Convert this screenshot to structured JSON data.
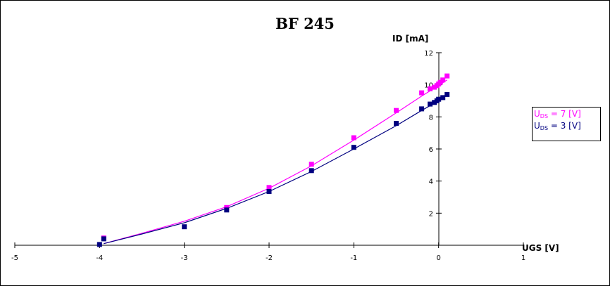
{
  "chart_data": {
    "type": "scatter",
    "title": "BF 245",
    "xlabel": "UGS [V]",
    "ylabel": "ID [mA]",
    "xlim": [
      -5,
      1
    ],
    "ylim": [
      0,
      12
    ],
    "x_ticks": [
      "-5",
      "-4",
      "-3",
      "-2",
      "-1",
      "0",
      "1"
    ],
    "y_ticks": [
      "2",
      "4",
      "6",
      "8",
      "10",
      "12"
    ],
    "grid": false,
    "legend_position": "right",
    "series": [
      {
        "id": "uds7",
        "name_main": "U",
        "name_sub": "DS",
        "name_rest": " = 7 [V]",
        "color": "#ff00ff",
        "points": [
          {
            "x": -3.95,
            "y": 0.45
          },
          {
            "x": -2.5,
            "y": 2.35
          },
          {
            "x": -2.0,
            "y": 3.6
          },
          {
            "x": -1.5,
            "y": 5.05
          },
          {
            "x": -1.0,
            "y": 6.7
          },
          {
            "x": -0.5,
            "y": 8.4
          },
          {
            "x": -0.2,
            "y": 9.5
          },
          {
            "x": -0.1,
            "y": 9.75
          },
          {
            "x": -0.05,
            "y": 9.85
          },
          {
            "x": -0.02,
            "y": 9.95
          },
          {
            "x": 0.0,
            "y": 10.05
          },
          {
            "x": 0.02,
            "y": 10.15
          },
          {
            "x": 0.05,
            "y": 10.3
          },
          {
            "x": 0.1,
            "y": 10.55
          }
        ],
        "fit": [
          {
            "x": -3.95,
            "y": 0.1
          },
          {
            "x": -3.5,
            "y": 0.75
          },
          {
            "x": -3.0,
            "y": 1.5
          },
          {
            "x": -2.5,
            "y": 2.4
          },
          {
            "x": -2.0,
            "y": 3.55
          },
          {
            "x": -1.5,
            "y": 4.95
          },
          {
            "x": -1.0,
            "y": 6.55
          },
          {
            "x": -0.5,
            "y": 8.25
          },
          {
            "x": -0.2,
            "y": 9.3
          },
          {
            "x": 0.0,
            "y": 9.95
          },
          {
            "x": 0.1,
            "y": 10.3
          }
        ]
      },
      {
        "id": "uds3",
        "name_main": "U",
        "name_sub": "DS",
        "name_rest": " = 3 [V]",
        "color": "#000080",
        "points": [
          {
            "x": -4.0,
            "y": 0.05
          },
          {
            "x": -3.95,
            "y": 0.4
          },
          {
            "x": -3.0,
            "y": 1.15
          },
          {
            "x": -2.5,
            "y": 2.2
          },
          {
            "x": -2.0,
            "y": 3.35
          },
          {
            "x": -1.5,
            "y": 4.65
          },
          {
            "x": -1.0,
            "y": 6.1
          },
          {
            "x": -0.5,
            "y": 7.6
          },
          {
            "x": -0.2,
            "y": 8.5
          },
          {
            "x": -0.1,
            "y": 8.8
          },
          {
            "x": -0.05,
            "y": 8.9
          },
          {
            "x": -0.02,
            "y": 9.0
          },
          {
            "x": 0.0,
            "y": 9.1
          },
          {
            "x": 0.05,
            "y": 9.2
          },
          {
            "x": 0.1,
            "y": 9.4
          }
        ],
        "fit": [
          {
            "x": -3.95,
            "y": 0.1
          },
          {
            "x": -3.5,
            "y": 0.7
          },
          {
            "x": -3.0,
            "y": 1.4
          },
          {
            "x": -2.5,
            "y": 2.3
          },
          {
            "x": -2.0,
            "y": 3.35
          },
          {
            "x": -1.5,
            "y": 4.6
          },
          {
            "x": -1.0,
            "y": 6.0
          },
          {
            "x": -0.5,
            "y": 7.45
          },
          {
            "x": -0.2,
            "y": 8.4
          },
          {
            "x": 0.0,
            "y": 9.0
          },
          {
            "x": 0.1,
            "y": 9.35
          }
        ]
      }
    ]
  }
}
